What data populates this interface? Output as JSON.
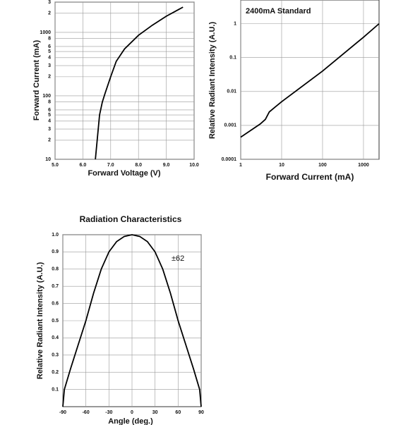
{
  "chart_data": [
    {
      "type": "line",
      "xlabel": "Forward Voltage (V)",
      "ylabel": "Forward Current (mA)",
      "x": [
        6.45,
        6.6,
        6.7,
        6.8,
        7.0,
        7.2,
        7.5,
        8.0,
        8.5,
        9.0,
        9.6
      ],
      "values": [
        10,
        50,
        80,
        110,
        200,
        350,
        550,
        900,
        1300,
        1800,
        2500
      ],
      "color": "#000000",
      "xlim": [
        5,
        10
      ],
      "ylim": [
        10,
        3000
      ],
      "ylog": true,
      "xlog": false,
      "grid": true,
      "xticks": [
        {
          "value": 5,
          "label": "5.0"
        },
        {
          "value": 6,
          "label": "6.0"
        },
        {
          "value": 7,
          "label": "7.0"
        },
        {
          "value": 8,
          "label": "8.0"
        },
        {
          "value": 9,
          "label": "9.0"
        },
        {
          "value": 10,
          "label": "10.0"
        }
      ],
      "yticks": [
        10,
        {
          "value": 20,
          "label": "2"
        },
        {
          "value": 30,
          "label": "3"
        },
        {
          "value": 40,
          "label": "4"
        },
        {
          "value": 50,
          "label": "5"
        },
        {
          "value": 60,
          "label": "6"
        },
        {
          "value": 80,
          "label": "8"
        },
        100,
        {
          "value": 200,
          "label": "2"
        },
        {
          "value": 300,
          "label": "3"
        },
        {
          "value": 400,
          "label": "4"
        },
        {
          "value": 500,
          "label": "5"
        },
        {
          "value": 600,
          "label": "6"
        },
        {
          "value": 800,
          "label": "8"
        },
        1000,
        {
          "value": 2000,
          "label": "2"
        },
        {
          "value": 3000,
          "label": "3"
        }
      ]
    },
    {
      "type": "line",
      "xlabel": "Forward Current (mA)",
      "ylabel": "Relative Radiant Intensity (A.U.)",
      "annotation": "2400mA Standard",
      "x": [
        1,
        3,
        4,
        5,
        7,
        10,
        100,
        1000,
        2400
      ],
      "values": [
        0.00045,
        0.0011,
        0.0015,
        0.0025,
        0.0035,
        0.005,
        0.04,
        0.4,
        1
      ],
      "color": "#000000",
      "xlim": [
        1,
        2400
      ],
      "ylim": [
        0.0001,
        5
      ],
      "xlog": true,
      "ylog": true,
      "grid": true,
      "xticks": [
        1,
        10,
        100,
        1000
      ],
      "yticks": [
        0.0001,
        0.001,
        0.01,
        0.1,
        1
      ]
    },
    {
      "type": "line",
      "title": "Radiation Characteristics",
      "xlabel": "Angle (deg.)",
      "ylabel": "Relative Radiant Intensity (A.U.)",
      "annotation": "±62",
      "x": [
        -90,
        -88,
        -80,
        -70,
        -60,
        -50,
        -40,
        -30,
        -20,
        -10,
        0,
        10,
        20,
        30,
        40,
        50,
        60,
        70,
        80,
        88,
        90
      ],
      "values": [
        0,
        0.1,
        0.22,
        0.36,
        0.5,
        0.66,
        0.8,
        0.9,
        0.96,
        0.99,
        1,
        0.99,
        0.96,
        0.9,
        0.8,
        0.66,
        0.5,
        0.36,
        0.22,
        0.1,
        0
      ],
      "color": "#000000",
      "xlim": [
        -90,
        90
      ],
      "ylim": [
        0,
        1
      ],
      "xlog": false,
      "ylog": false,
      "grid": true,
      "xticks": [
        -90,
        -60,
        -30,
        0,
        30,
        60,
        90
      ],
      "yticks": [
        0.1,
        0.2,
        0.3,
        0.4,
        0.5,
        0.6,
        0.7,
        0.8,
        0.9,
        {
          "value": 1,
          "label": "1.0"
        }
      ]
    }
  ]
}
